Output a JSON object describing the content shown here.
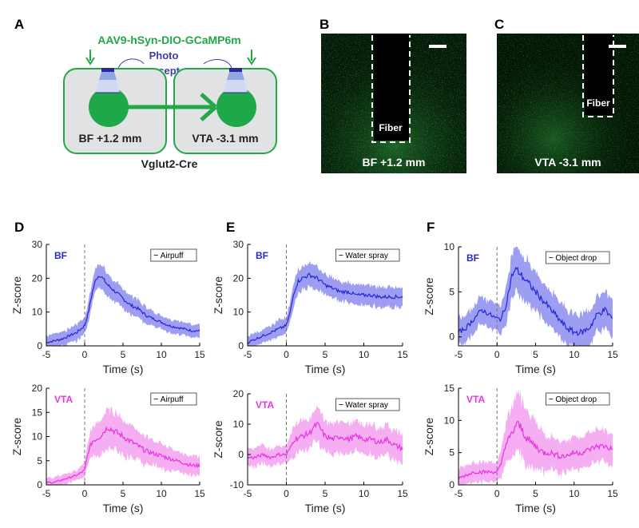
{
  "panel_letters": [
    "A",
    "B",
    "C",
    "D",
    "E",
    "F"
  ],
  "schematic": {
    "virus": "AAV9-hSyn-DIO-GCaMP6m",
    "receptor_line1": "Photo",
    "receptor_line2": "receptor",
    "left_region": "BF +1.2 mm",
    "right_region": "VTA -3.1 mm",
    "mouse_line": "Vglut2-Cre",
    "accent_color": "#22a846",
    "text_color": "#3c3caa"
  },
  "micrographs": [
    {
      "fiber_label": "Fiber",
      "caption": "BF +1.2 mm"
    },
    {
      "fiber_label": "Fiber",
      "caption": "VTA -3.1 mm"
    }
  ],
  "colors": {
    "bf": "#2727d6",
    "bf_band": "#8c8cf0",
    "vta": "#e833e0",
    "vta_band": "#f2a0ee"
  },
  "chart_data": [
    {
      "type": "line",
      "panel": "D",
      "region": "BF",
      "legend": "Airpuff",
      "xlabel": "Time (s)",
      "ylabel": "Z-score",
      "xlim": [
        -5,
        15
      ],
      "ylim": [
        0,
        30
      ],
      "xticks": [
        -5,
        0,
        5,
        10,
        15
      ],
      "yticks": [
        0,
        10,
        20,
        30
      ],
      "x": [
        -5,
        -4,
        -3,
        -2,
        -1,
        0,
        0.5,
        1,
        1.5,
        2,
        3,
        4,
        5,
        6,
        7,
        8,
        9,
        10,
        11,
        12,
        13,
        14,
        15
      ],
      "y": [
        1,
        1.5,
        2,
        3,
        4,
        6,
        10,
        16,
        20,
        21,
        18,
        16,
        14,
        12,
        11,
        9,
        8,
        7,
        6,
        5.5,
        5,
        4.5,
        4.5
      ],
      "band": [
        2,
        2,
        2,
        2,
        2.5,
        2.5,
        3,
        3.5,
        3.5,
        3.5,
        3.5,
        3,
        3,
        3,
        2.5,
        2.5,
        2,
        2,
        2,
        2,
        2,
        2,
        2
      ]
    },
    {
      "type": "line",
      "panel": "D",
      "region": "VTA",
      "legend": "Airpuff",
      "xlabel": "Time (s)",
      "ylabel": "Z-score",
      "xlim": [
        -5,
        15
      ],
      "ylim": [
        0,
        20
      ],
      "xticks": [
        -5,
        0,
        5,
        10,
        15
      ],
      "yticks": [
        0,
        5,
        10,
        15,
        20
      ],
      "x": [
        -5,
        -4,
        -3,
        -2,
        -1,
        0,
        0.5,
        1,
        2,
        3,
        4,
        5,
        6,
        7,
        8,
        9,
        10,
        11,
        12,
        13,
        14,
        15
      ],
      "y": [
        0.5,
        0.5,
        1,
        1.5,
        2,
        3,
        7,
        9,
        10,
        12,
        11,
        10,
        9,
        8,
        7,
        6.5,
        6,
        5.5,
        5,
        4.5,
        4,
        4
      ],
      "band": [
        1,
        1,
        1,
        1,
        1,
        1.5,
        2.5,
        3,
        3.5,
        4,
        4,
        3.5,
        3.5,
        3,
        3,
        2.5,
        2.5,
        2.5,
        2,
        2,
        2,
        2
      ]
    },
    {
      "type": "line",
      "panel": "E",
      "region": "BF",
      "legend": "Water spray",
      "xlabel": "Time (s)",
      "ylabel": "Z-score",
      "xlim": [
        -5,
        15
      ],
      "ylim": [
        0,
        30
      ],
      "xticks": [
        -5,
        0,
        5,
        10,
        15
      ],
      "yticks": [
        0,
        10,
        20,
        30
      ],
      "x": [
        -5,
        -4,
        -3,
        -2,
        -1,
        0,
        0.5,
        1,
        1.5,
        2,
        3,
        4,
        5,
        6,
        7,
        8,
        9,
        10,
        11,
        12,
        13,
        14,
        15
      ],
      "y": [
        1,
        2,
        3,
        4,
        5,
        6,
        10,
        16,
        19,
        20,
        21,
        20,
        18,
        17,
        16,
        16,
        15,
        15,
        15,
        14.5,
        14.5,
        14.5,
        14.5
      ],
      "band": [
        2,
        2,
        2,
        2,
        2.5,
        2.5,
        3,
        3.5,
        3.5,
        3.5,
        3.5,
        3.5,
        3,
        3,
        3,
        3,
        3,
        3,
        3,
        3,
        3,
        3,
        3
      ]
    },
    {
      "type": "line",
      "panel": "E",
      "region": "VTA",
      "legend": "Water spray",
      "xlabel": "Time (s)",
      "ylabel": "Z-score",
      "xlim": [
        -5,
        15
      ],
      "ylim": [
        -10,
        20
      ],
      "xticks": [
        -5,
        0,
        5,
        10,
        15
      ],
      "yticks": [
        -10,
        0,
        10,
        20
      ],
      "x": [
        -5,
        -4,
        -3,
        -2,
        -1,
        0,
        0.5,
        1,
        2,
        3,
        3.5,
        4,
        4.5,
        5,
        6,
        7,
        8,
        9,
        10,
        11,
        12,
        13,
        14,
        15
      ],
      "y": [
        -1,
        -1,
        0,
        -1,
        0,
        0,
        2,
        5,
        6,
        7,
        9,
        10,
        8,
        6,
        5,
        6,
        5,
        6,
        5,
        5,
        4,
        5,
        3,
        2
      ],
      "band": [
        3,
        3,
        3,
        3,
        3,
        3,
        4,
        5,
        5,
        5,
        5,
        6,
        6,
        5,
        5,
        5,
        5,
        5,
        5,
        5,
        5,
        5,
        5,
        5
      ]
    },
    {
      "type": "line",
      "panel": "F",
      "region": "BF",
      "legend": "Object drop",
      "xlabel": "Time (s)",
      "ylabel": "Z-score",
      "xlim": [
        -5,
        15
      ],
      "ylim": [
        -1,
        10
      ],
      "xticks": [
        -5,
        0,
        5,
        10,
        15
      ],
      "yticks": [
        0,
        5,
        10
      ],
      "x": [
        -5,
        -4,
        -3,
        -2,
        -1,
        0,
        0.5,
        1,
        1.5,
        2,
        2.5,
        3,
        4,
        5,
        6,
        7,
        8,
        9,
        10,
        11,
        12,
        13,
        14,
        15
      ],
      "y": [
        0.5,
        1,
        2,
        3,
        2.5,
        2,
        2,
        3,
        5,
        7,
        7.5,
        7,
        6,
        5,
        4,
        3,
        2,
        1,
        0.5,
        0.5,
        1,
        2.5,
        3,
        2
      ],
      "band": [
        1.5,
        1.5,
        1.5,
        1.5,
        1.5,
        1.5,
        1.5,
        2,
        2,
        2.5,
        2.5,
        2.5,
        2.5,
        2,
        2,
        2,
        2,
        2,
        2,
        2,
        2,
        2,
        2,
        2
      ]
    },
    {
      "type": "line",
      "panel": "F",
      "region": "VTA",
      "legend": "Object drop",
      "xlabel": "Time (s)",
      "ylabel": "Z-score",
      "xlim": [
        -5,
        15
      ],
      "ylim": [
        0,
        15
      ],
      "xticks": [
        -5,
        0,
        5,
        10,
        15
      ],
      "yticks": [
        0,
        5,
        10,
        15
      ],
      "x": [
        -5,
        -4,
        -3,
        -2,
        -1,
        0,
        0.5,
        1,
        2,
        2.5,
        3,
        4,
        5,
        6,
        7,
        8,
        9,
        10,
        11,
        12,
        13,
        14,
        15
      ],
      "y": [
        1,
        1.5,
        2,
        2,
        2,
        2,
        3,
        6,
        8,
        9.5,
        9,
        7,
        6,
        5,
        5,
        4.5,
        4.5,
        5,
        5,
        5.5,
        6,
        6,
        5.5
      ],
      "band": [
        1.5,
        1.5,
        1.5,
        1.5,
        1.5,
        1.5,
        2,
        3,
        4,
        4.5,
        4.5,
        4,
        3.5,
        3,
        2.5,
        2.5,
        2.5,
        2.5,
        2.5,
        2.5,
        2.5,
        2.5,
        2.5
      ]
    }
  ]
}
